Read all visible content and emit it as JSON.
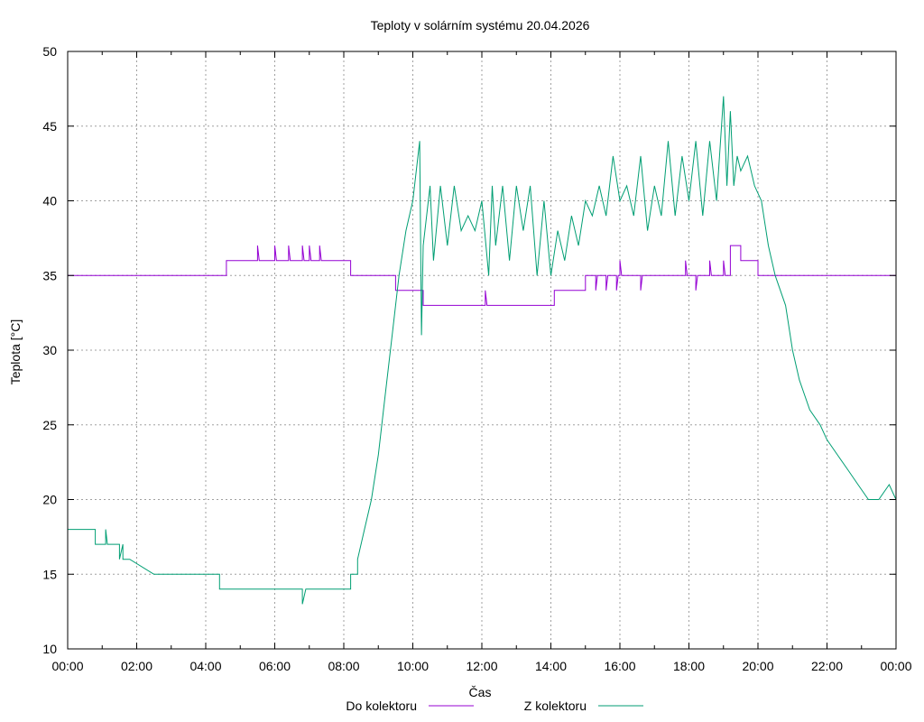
{
  "chart_data": {
    "type": "line",
    "title": "Teploty v solárním systému 20.04.2026",
    "xlabel": "Čas",
    "ylabel": "Teplota [°C]",
    "xlim": [
      0,
      24
    ],
    "ylim": [
      10,
      50
    ],
    "x_tick_labels": [
      "00:00",
      "02:00",
      "04:00",
      "06:00",
      "08:00",
      "10:00",
      "12:00",
      "14:00",
      "16:00",
      "18:00",
      "20:00",
      "22:00",
      "00:00"
    ],
    "y_tick_labels": [
      "10",
      "15",
      "20",
      "25",
      "30",
      "35",
      "40",
      "45",
      "50"
    ],
    "grid": true,
    "legend_position": "bottom",
    "series": [
      {
        "name": "Do kolektoru",
        "color": "#9400d3",
        "x": [
          0,
          4.6,
          4.6,
          5.5,
          5.5,
          5.55,
          6.0,
          6.0,
          6.05,
          6.4,
          6.4,
          6.45,
          6.8,
          6.8,
          6.85,
          7.0,
          7.0,
          7.05,
          7.3,
          7.3,
          7.35,
          8.2,
          8.2,
          9.5,
          9.5,
          10.3,
          10.3,
          12.1,
          12.1,
          12.15,
          14.1,
          14.1,
          15.0,
          15.0,
          15.3,
          15.3,
          15.35,
          15.6,
          15.6,
          15.65,
          15.9,
          15.9,
          15.95,
          16.0,
          16.0,
          16.05,
          16.6,
          16.6,
          16.65,
          17.9,
          17.9,
          17.95,
          18.2,
          18.2,
          18.25,
          18.6,
          18.6,
          18.65,
          19.0,
          19.0,
          19.05,
          19.2,
          19.2,
          19.5,
          19.5,
          20.0,
          20.0,
          24
        ],
        "y": [
          35,
          35,
          36,
          36,
          37,
          36,
          36,
          37,
          36,
          36,
          37,
          36,
          36,
          37,
          36,
          36,
          37,
          36,
          36,
          37,
          36,
          36,
          35,
          35,
          34,
          34,
          33,
          33,
          34,
          33,
          33,
          34,
          34,
          35,
          35,
          34,
          35,
          35,
          34,
          35,
          35,
          34,
          35,
          35,
          36,
          35,
          35,
          34,
          35,
          35,
          36,
          35,
          35,
          34,
          35,
          35,
          36,
          35,
          35,
          36,
          35,
          35,
          37,
          37,
          36,
          36,
          35,
          35
        ]
      },
      {
        "name": "Z kolektoru",
        "color": "#009e73",
        "x": [
          0,
          0.8,
          0.8,
          1.1,
          1.1,
          1.15,
          1.5,
          1.5,
          1.6,
          1.6,
          1.8,
          1.8,
          2.5,
          2.5,
          4.4,
          4.4,
          6.8,
          6.8,
          6.9,
          8.2,
          8.2,
          8.4,
          8.4,
          8.6,
          8.8,
          9.0,
          9.2,
          9.4,
          9.6,
          9.8,
          10.0,
          10.1,
          10.2,
          10.25,
          10.3,
          10.5,
          10.6,
          10.8,
          11.0,
          11.2,
          11.4,
          11.6,
          11.8,
          12.0,
          12.2,
          12.3,
          12.4,
          12.6,
          12.8,
          13.0,
          13.2,
          13.4,
          13.6,
          13.8,
          14.0,
          14.2,
          14.4,
          14.6,
          14.8,
          15.0,
          15.2,
          15.4,
          15.6,
          15.8,
          16.0,
          16.2,
          16.4,
          16.6,
          16.8,
          17.0,
          17.2,
          17.4,
          17.6,
          17.8,
          18.0,
          18.2,
          18.4,
          18.6,
          18.8,
          19.0,
          19.1,
          19.2,
          19.3,
          19.4,
          19.5,
          19.7,
          19.9,
          20.1,
          20.3,
          20.5,
          20.8,
          21.0,
          21.2,
          21.5,
          21.8,
          22.0,
          22.3,
          22.6,
          22.9,
          23.2,
          23.5,
          23.8,
          24.0
        ],
        "y": [
          18,
          18,
          17,
          17,
          18,
          17,
          17,
          16,
          17,
          16,
          16,
          16,
          15,
          15,
          15,
          14,
          14,
          13,
          14,
          14,
          15,
          15,
          16,
          18,
          20,
          23,
          27,
          31,
          35,
          38,
          40,
          42,
          44,
          31,
          37,
          41,
          36,
          41,
          37,
          41,
          38,
          39,
          38,
          40,
          35,
          41,
          37,
          41,
          36,
          41,
          38,
          41,
          35,
          40,
          35,
          38,
          36,
          39,
          37,
          40,
          39,
          41,
          39,
          43,
          40,
          41,
          39,
          43,
          38,
          41,
          39,
          44,
          39,
          43,
          40,
          44,
          39,
          44,
          40,
          47,
          41,
          46,
          41,
          43,
          42,
          43,
          41,
          40,
          37,
          35,
          33,
          30,
          28,
          26,
          25,
          24,
          23,
          22,
          21,
          20,
          20,
          21,
          20
        ]
      }
    ]
  }
}
